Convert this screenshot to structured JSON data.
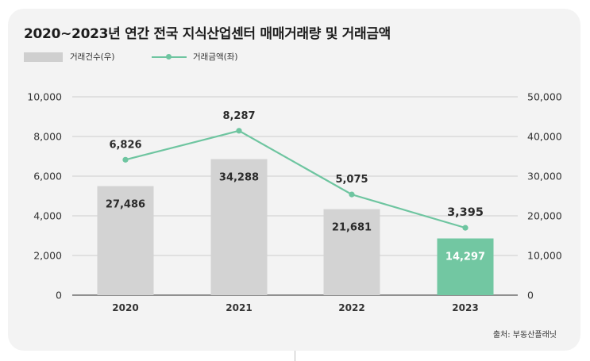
{
  "title": "2020~2023년 연간 전국 지식산업센터 매매거래량 및 거래금액",
  "source": "출처: 부동산플래닛",
  "colors": {
    "bar": "#d3d3d3",
    "bar_highlight": "#72c7a2",
    "line": "#6ec5a0",
    "axis": "#333333",
    "grid": "#bfbfbf",
    "card": "#f3f3f3"
  },
  "chart_data": {
    "type": "bar",
    "categories": [
      "2020",
      "2021",
      "2022",
      "2023"
    ],
    "series": [
      {
        "name": "거래건수(우)",
        "type": "bar",
        "axis": "right",
        "values": [
          27486,
          34288,
          21681,
          14297
        ],
        "labels": [
          "27,486",
          "34,288",
          "21,681",
          "14,297"
        ],
        "highlight_index": 3
      },
      {
        "name": "거래금액(좌)",
        "type": "line",
        "axis": "left",
        "values": [
          6826,
          8287,
          5075,
          3395
        ],
        "labels": [
          "6,826",
          "8,287",
          "5,075",
          "3,395"
        ]
      }
    ],
    "y_left": {
      "min": 0,
      "max": 10000,
      "ticks": [
        "0",
        "2,000",
        "4,000",
        "6,000",
        "8,000",
        "10,000"
      ]
    },
    "y_right": {
      "min": 0,
      "max": 50000,
      "ticks": [
        "0",
        "10,000",
        "20,000",
        "30,000",
        "40,000",
        "50,000"
      ]
    },
    "grid": "horizontal",
    "legend": "top-left"
  }
}
